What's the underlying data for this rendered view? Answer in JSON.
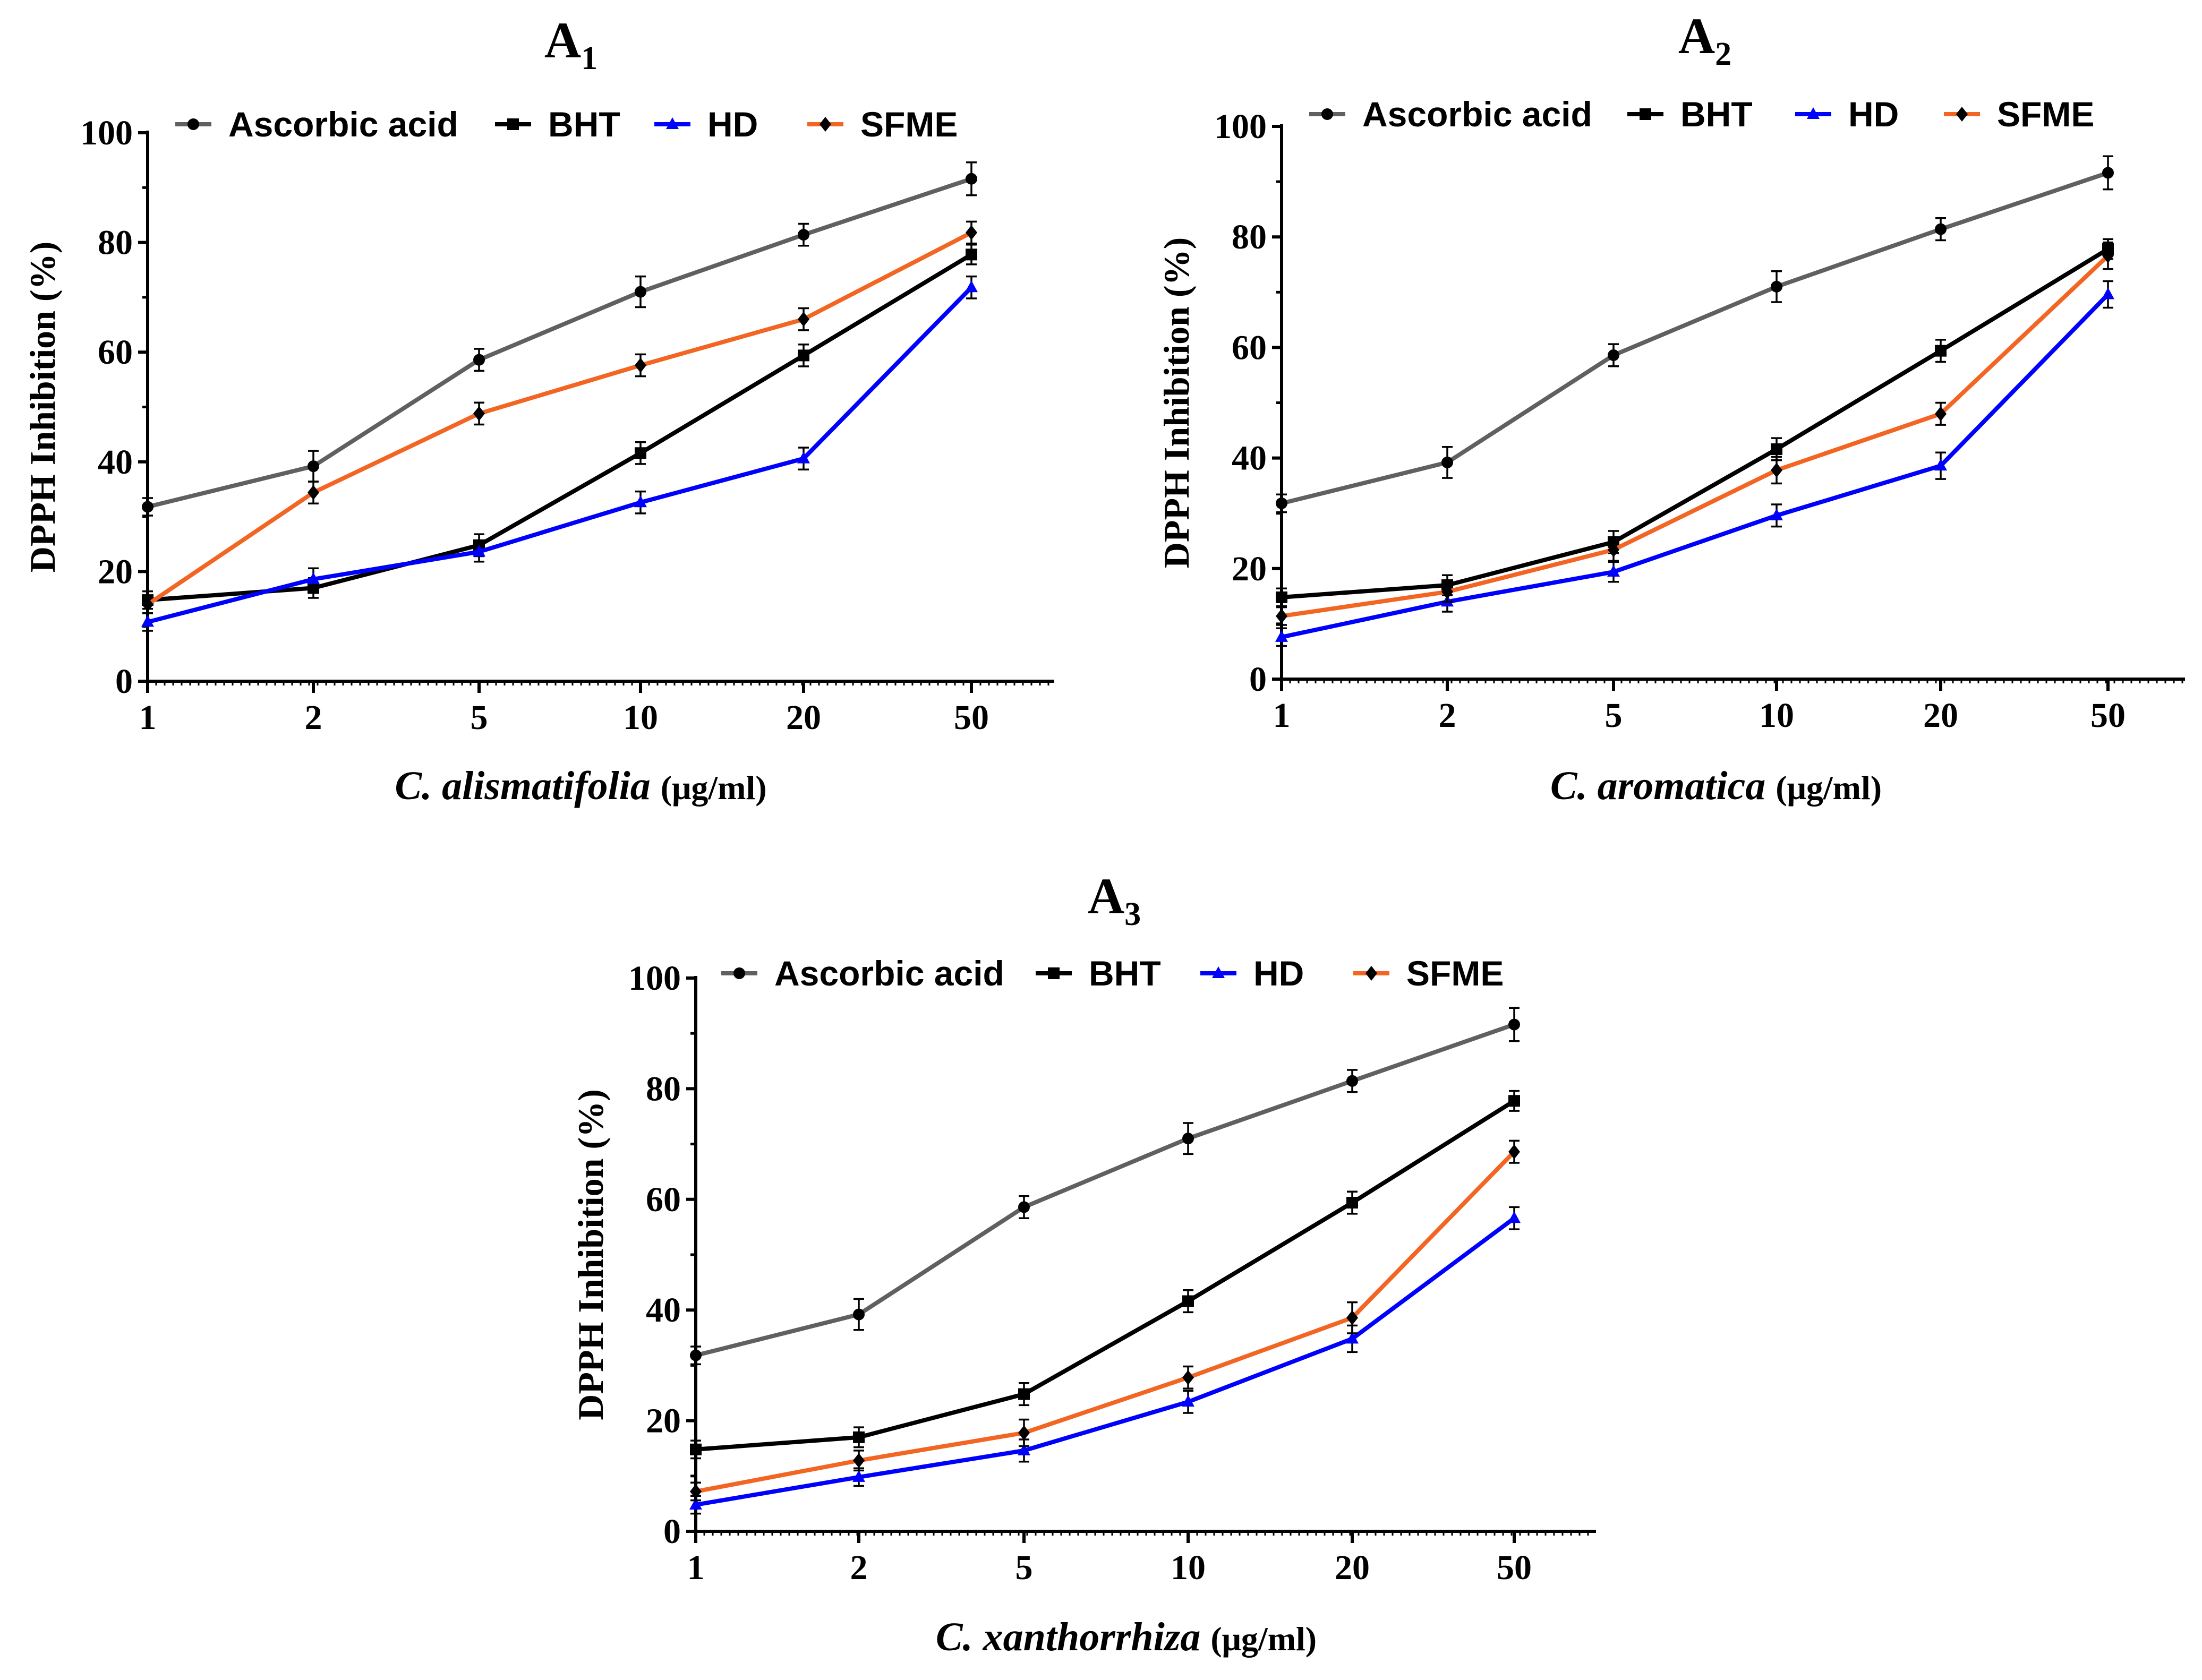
{
  "chart_data": [
    {
      "type": "line",
      "title": "A",
      "title_sub": "1",
      "xlabel_italic": "C. alismatifolia",
      "xlabel_unit": "(μg/ml)",
      "ylabel": "DPPH Inhibition (%)",
      "categories": [
        "1",
        "2",
        "5",
        "10",
        "20",
        "50"
      ],
      "ylim": [
        0,
        100
      ],
      "yticks": [
        "0",
        "20",
        "40",
        "60",
        "80",
        "100"
      ],
      "legend_position": "top",
      "series": [
        {
          "name": "Ascorbic acid",
          "color": "#606060",
          "marker": "circle",
          "values": [
            31.8,
            39.2,
            58.6,
            71.0,
            81.4,
            91.6
          ],
          "errors": [
            1.6,
            2.8,
            2.0,
            2.8,
            2.0,
            3.0
          ]
        },
        {
          "name": "BHT",
          "color": "#000000",
          "marker": "square",
          "values": [
            14.8,
            17.0,
            24.8,
            41.6,
            59.4,
            77.8
          ],
          "errors": [
            1.6,
            1.8,
            2.0,
            2.0,
            2.0,
            1.8
          ]
        },
        {
          "name": "HD",
          "color": "#0000ff",
          "marker": "triangle",
          "values": [
            10.8,
            18.6,
            23.6,
            32.6,
            40.6,
            71.8
          ],
          "errors": [
            1.6,
            2.0,
            1.8,
            2.0,
            2.0,
            2.0
          ]
        },
        {
          "name": "SFME",
          "color": "#f26522",
          "marker": "diamond",
          "values": [
            14.0,
            34.4,
            48.8,
            57.6,
            66.0,
            81.8
          ],
          "errors": [
            1.6,
            2.0,
            2.0,
            2.0,
            2.0,
            2.0
          ]
        }
      ]
    },
    {
      "type": "line",
      "title": "A",
      "title_sub": "2",
      "xlabel_italic": "C. aromatica",
      "xlabel_unit": "(μg/ml)",
      "ylabel": "DPPH Inhibition (%)",
      "categories": [
        "1",
        "2",
        "5",
        "10",
        "20",
        "50"
      ],
      "ylim": [
        0,
        100
      ],
      "yticks": [
        "0",
        "20",
        "40",
        "60",
        "80",
        "100"
      ],
      "legend_position": "top",
      "series": [
        {
          "name": "Ascorbic acid",
          "color": "#606060",
          "marker": "circle",
          "values": [
            31.8,
            39.2,
            58.6,
            71.0,
            81.4,
            91.6
          ],
          "errors": [
            1.6,
            2.8,
            2.0,
            2.8,
            2.0,
            3.0
          ]
        },
        {
          "name": "BHT",
          "color": "#000000",
          "marker": "square",
          "values": [
            14.8,
            17.0,
            24.8,
            41.6,
            59.4,
            77.8
          ],
          "errors": [
            1.6,
            1.8,
            2.0,
            2.0,
            2.0,
            1.8
          ]
        },
        {
          "name": "HD",
          "color": "#0000ff",
          "marker": "triangle",
          "values": [
            7.6,
            14.0,
            19.4,
            29.6,
            38.6,
            69.6
          ],
          "errors": [
            1.6,
            1.8,
            1.8,
            2.0,
            2.4,
            2.4
          ]
        },
        {
          "name": "SFME",
          "color": "#f26522",
          "marker": "diamond",
          "values": [
            11.4,
            15.8,
            23.4,
            37.8,
            48.0,
            76.6
          ],
          "errors": [
            1.6,
            1.8,
            2.0,
            2.4,
            2.0,
            2.4
          ]
        }
      ]
    },
    {
      "type": "line",
      "title": "A",
      "title_sub": "3",
      "xlabel_italic": "C. xanthorrhiza",
      "xlabel_unit": "(μg/ml)",
      "ylabel": "DPPH Inhibition (%)",
      "categories": [
        "1",
        "2",
        "5",
        "10",
        "20",
        "50"
      ],
      "ylim": [
        0,
        100
      ],
      "yticks": [
        "0",
        "20",
        "40",
        "60",
        "80",
        "100"
      ],
      "legend_position": "top",
      "series": [
        {
          "name": "Ascorbic acid",
          "color": "#606060",
          "marker": "circle",
          "values": [
            31.8,
            39.2,
            58.6,
            71.0,
            81.4,
            91.6
          ],
          "errors": [
            1.6,
            2.8,
            2.0,
            2.8,
            2.0,
            3.0
          ]
        },
        {
          "name": "BHT",
          "color": "#000000",
          "marker": "square",
          "values": [
            14.8,
            17.0,
            24.8,
            41.6,
            59.4,
            77.8
          ],
          "errors": [
            1.6,
            1.8,
            2.0,
            2.0,
            2.0,
            1.8
          ]
        },
        {
          "name": "HD",
          "color": "#0000ff",
          "marker": "triangle",
          "values": [
            4.8,
            9.8,
            14.6,
            23.4,
            34.8,
            56.6
          ],
          "errors": [
            1.6,
            1.6,
            2.0,
            2.0,
            2.4,
            2.0
          ]
        },
        {
          "name": "SFME",
          "color": "#f26522",
          "marker": "diamond",
          "values": [
            7.2,
            12.8,
            17.8,
            27.8,
            38.6,
            68.6
          ],
          "errors": [
            1.6,
            1.8,
            2.4,
            2.0,
            2.8,
            2.0
          ]
        }
      ]
    }
  ]
}
